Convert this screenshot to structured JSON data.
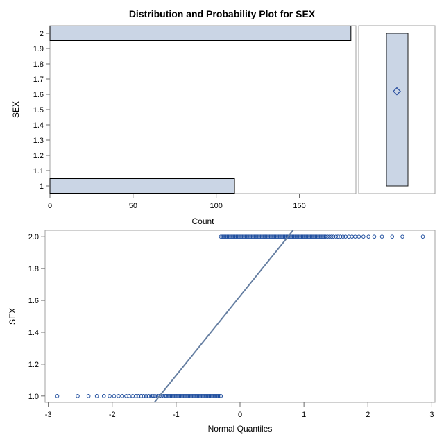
{
  "title": "Distribution and Probability Plot for SEX",
  "colors": {
    "bar_fill": "#cad5e5",
    "bar_stroke": "#000000",
    "box_fill": "#cad5e5",
    "box_stroke": "#1a1a1a",
    "mean_marker": "#2a4fa0",
    "marker": "#1f4e9e",
    "ref_line": "#667fa2",
    "frame": "#a0a0a0",
    "axis": "#6b6b6b"
  },
  "chart_data": [
    {
      "type": "bar",
      "orientation": "horizontal",
      "categories": [
        "1",
        "2"
      ],
      "values": [
        111,
        181
      ],
      "xlabel": "Count",
      "ylabel": "SEX",
      "xlim": [
        0,
        184
      ],
      "ylim": [
        0.95,
        2.05
      ],
      "xticks": [
        "0",
        "50",
        "100",
        "150"
      ],
      "yticks": [
        "1",
        "1.1",
        "1.2",
        "1.3",
        "1.4",
        "1.5",
        "1.6",
        "1.7",
        "1.8",
        "1.9",
        "2"
      ]
    },
    {
      "type": "box",
      "variable": "SEX",
      "min": 1,
      "q1": 1,
      "median": 2,
      "q3": 2,
      "max": 2,
      "mean": 1.62
    },
    {
      "type": "scatter",
      "xlabel": "Normal Quantiles",
      "ylabel": "SEX",
      "xlim": [
        -3.05,
        3.05
      ],
      "ylim": [
        0.96,
        2.04
      ],
      "xticks": [
        "-3",
        "-2",
        "-1",
        "0",
        "1",
        "2",
        "3"
      ],
      "yticks": [
        "1.0",
        "1.2",
        "1.4",
        "1.6",
        "1.8",
        "2.0"
      ],
      "group_low": {
        "y": 1,
        "dense_range": [
          -1.15,
          -0.3
        ],
        "sparse_x": [
          -2.86,
          -2.54,
          -2.37,
          -2.24,
          -2.13,
          -2.04,
          -1.97,
          -1.9,
          -1.84,
          -1.78,
          -1.73,
          -1.68,
          -1.63,
          -1.59,
          -1.55,
          -1.51,
          -1.47,
          -1.43,
          -1.39,
          -1.36,
          -1.33,
          -1.29,
          -1.26,
          -1.23,
          -1.2,
          -1.17
        ]
      },
      "group_high": {
        "y": 2,
        "dense_range": [
          -0.3,
          1.32
        ],
        "sparse_x": [
          1.34,
          1.37,
          1.4,
          1.43,
          1.46,
          1.5,
          1.53,
          1.57,
          1.61,
          1.65,
          1.7,
          1.75,
          1.8,
          1.86,
          1.93,
          2.01,
          2.1,
          2.22,
          2.38,
          2.54,
          2.86
        ]
      },
      "reference_line": {
        "x1": -1.34,
        "y1": 0.96,
        "x2": 0.83,
        "y2": 2.04
      }
    }
  ]
}
